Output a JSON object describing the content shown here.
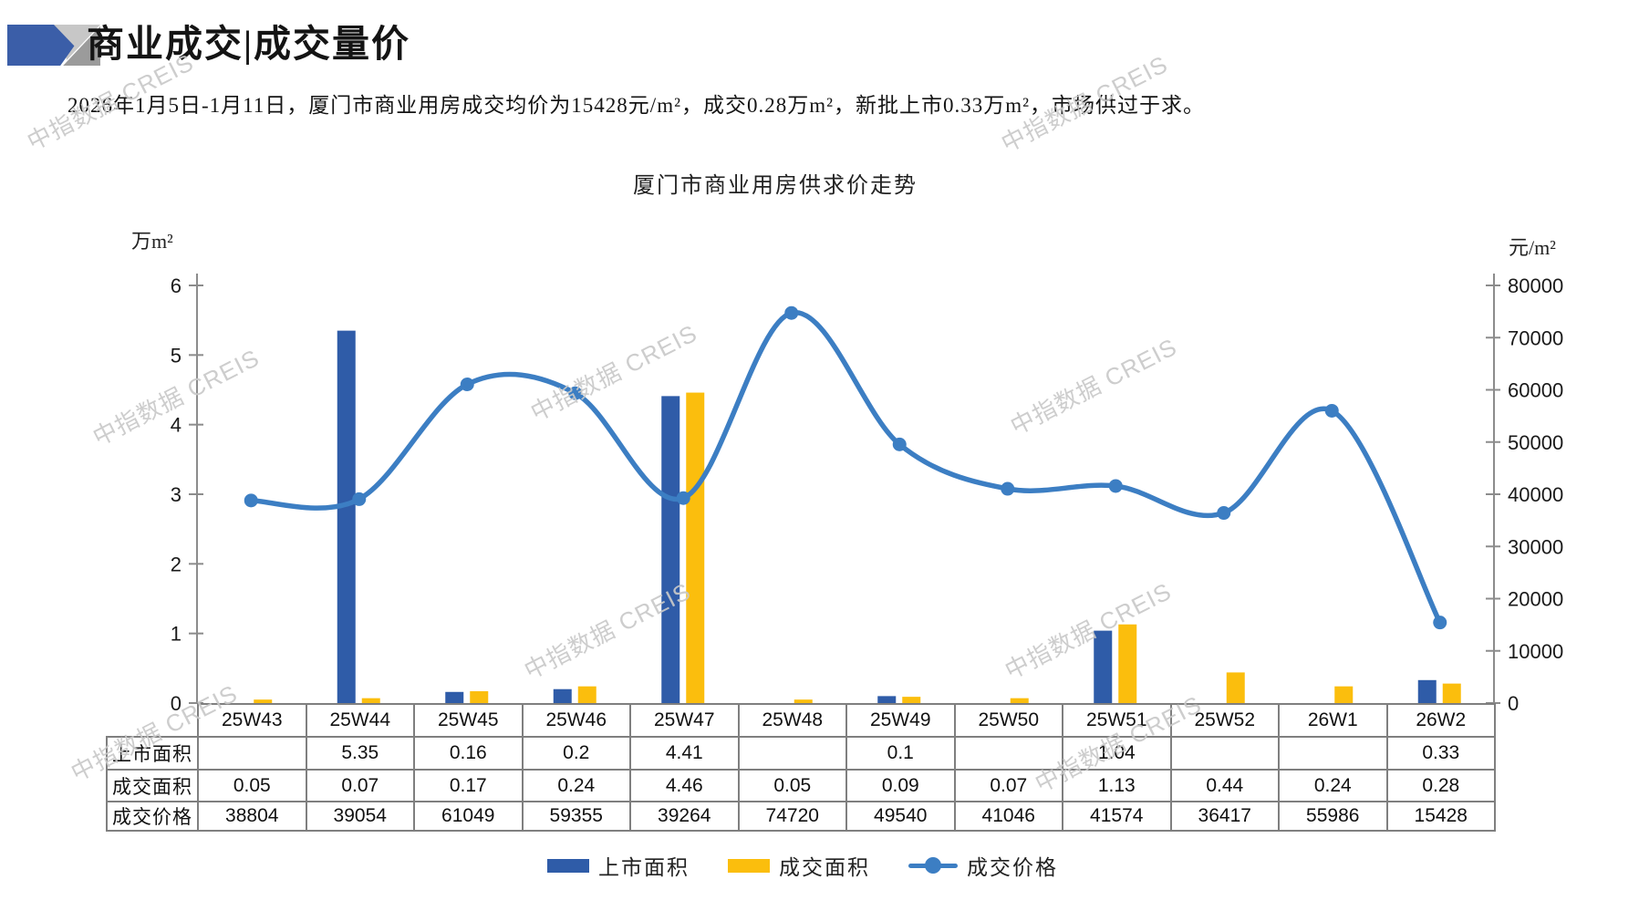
{
  "header": {
    "title": "商业成交|成交量价",
    "subtitle": "2026年1月5日-1月11日，厦门市商业用房成交均价为15428元/m²，成交0.28万m²，新批上市0.33万m²，市场供过于求。"
  },
  "watermark": {
    "text": "中指数据 CREIS"
  },
  "chart_data": {
    "type": "combo-bar-line",
    "title": "厦门市商业用房供求价走势",
    "categories": [
      "25W43",
      "25W44",
      "25W45",
      "25W46",
      "25W47",
      "25W48",
      "25W49",
      "25W50",
      "25W51",
      "25W52",
      "26W1",
      "26W2"
    ],
    "left_axis": {
      "label": "万m²",
      "min": 0,
      "max": 6,
      "step": 1
    },
    "right_axis": {
      "label": "元/m²",
      "min": 0,
      "max": 80000,
      "step": 10000
    },
    "grid": false,
    "legend_position": "bottom",
    "series": [
      {
        "name": "上市面积",
        "type": "bar",
        "axis": "left",
        "color": "#2F5CA8",
        "values": [
          null,
          5.35,
          0.16,
          0.2,
          4.41,
          null,
          0.1,
          null,
          1.04,
          null,
          null,
          0.33
        ]
      },
      {
        "name": "成交面积",
        "type": "bar",
        "axis": "left",
        "color": "#FBBE0D",
        "values": [
          0.05,
          0.07,
          0.17,
          0.24,
          4.46,
          0.05,
          0.09,
          0.07,
          1.13,
          0.44,
          0.24,
          0.28
        ]
      },
      {
        "name": "成交价格",
        "type": "line",
        "axis": "right",
        "color": "#3C7EC3",
        "values": [
          38804,
          39054,
          61049,
          59355,
          39264,
          74720,
          49540,
          41046,
          41574,
          36417,
          55986,
          15428
        ]
      }
    ]
  }
}
